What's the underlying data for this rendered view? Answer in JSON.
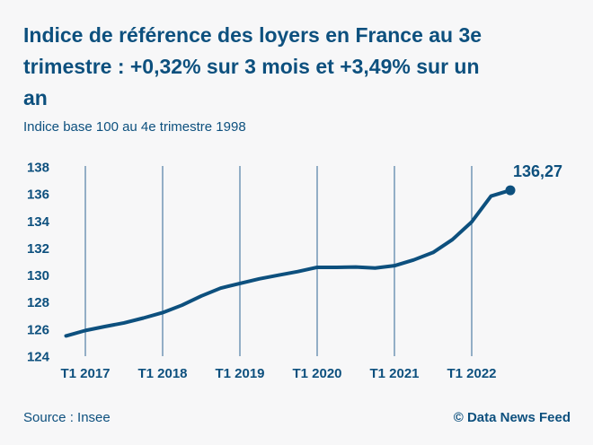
{
  "header": {
    "title": "Indice de référence des loyers en France au 3e trimestre : +0,32% sur 3 mois et +3,49% sur un an",
    "title_lines": [
      "Indice de référence des loyers en France au 3e",
      "trimestre : +0,32% sur 3 mois et +3,49% sur un",
      "an"
    ],
    "subtitle": "Indice base 100 au 4e trimestre 1998"
  },
  "chart_data": {
    "type": "line",
    "title": "Indice de référence des loyers en France au 3e trimestre : +0,32% sur 3 mois et +3,49% sur un an",
    "subtitle": "Indice base 100 au 4e trimestre 1998",
    "x": [
      "T4 2016",
      "T1 2017",
      "T2 2017",
      "T3 2017",
      "T4 2017",
      "T1 2018",
      "T2 2018",
      "T3 2018",
      "T4 2018",
      "T1 2019",
      "T2 2019",
      "T3 2019",
      "T4 2019",
      "T1 2020",
      "T2 2020",
      "T3 2020",
      "T4 2020",
      "T1 2021",
      "T2 2021",
      "T3 2021",
      "T4 2021",
      "T1 2022",
      "T2 2022",
      "T3 2022"
    ],
    "values": [
      125.5,
      125.9,
      126.19,
      126.46,
      126.82,
      127.22,
      127.77,
      128.45,
      129.03,
      129.38,
      129.72,
      129.99,
      130.26,
      130.57,
      130.57,
      130.59,
      130.52,
      130.69,
      131.12,
      131.67,
      132.62,
      133.93,
      135.84,
      136.27
    ],
    "x_tick_labels": [
      "T1 2017",
      "T1 2018",
      "T1 2019",
      "T1 2020",
      "T1 2021",
      "T1 2022"
    ],
    "y_ticks": [
      138,
      136,
      134,
      132,
      130,
      128,
      126,
      124
    ],
    "ylim": [
      124,
      138
    ],
    "end_label": "136,27",
    "grid": "vertical",
    "legend": "none",
    "line_color": "#0d507e"
  },
  "footer": {
    "source": "Source : Insee",
    "credit": "© Data News Feed"
  },
  "colors": {
    "accent": "#0d507e",
    "grid": "#2f6695",
    "background": "#f7f7f8"
  }
}
